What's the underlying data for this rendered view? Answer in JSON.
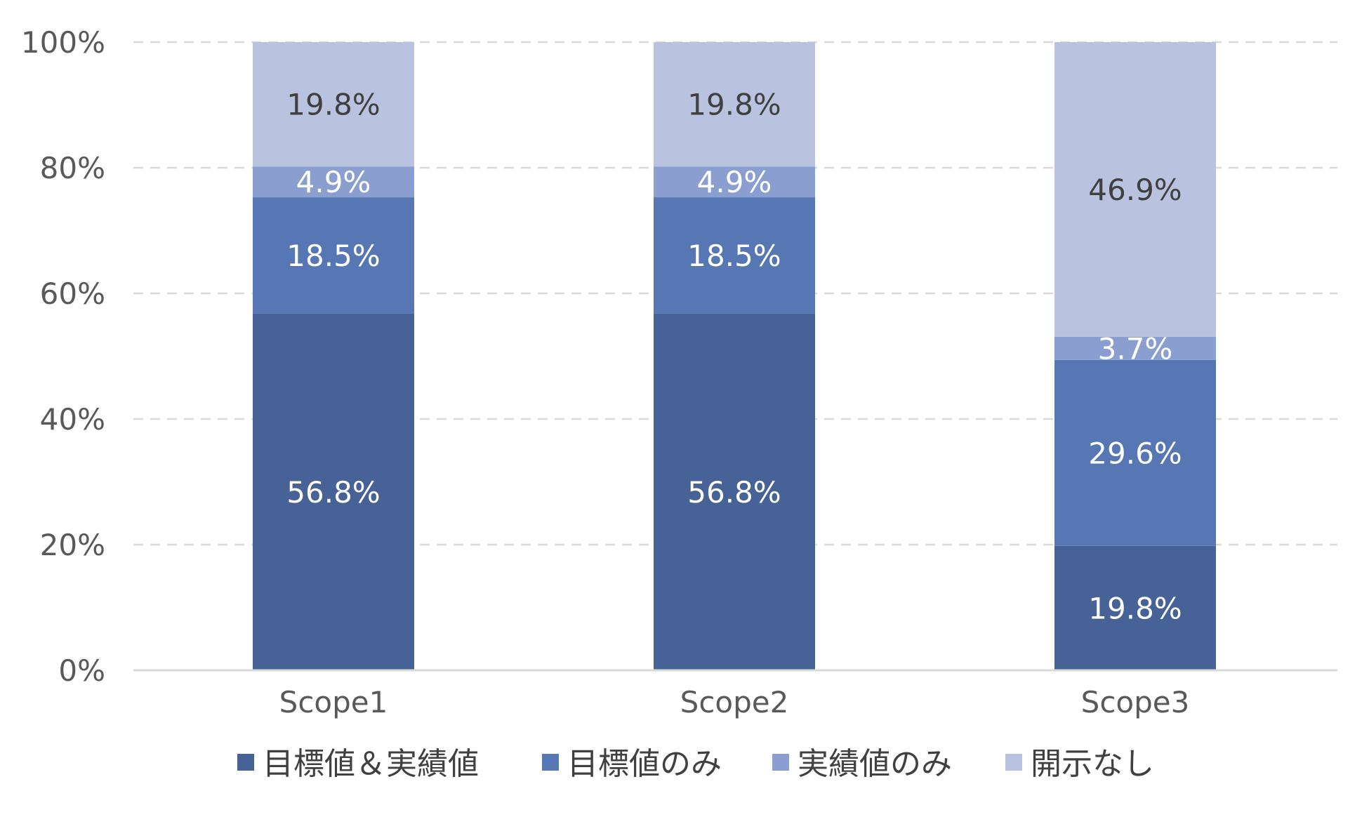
{
  "chart_data": {
    "type": "bar",
    "stacked": true,
    "categories": [
      "Scope1",
      "Scope2",
      "Scope3"
    ],
    "series": [
      {
        "name": "目標値＆実績値",
        "values": [
          56.8,
          56.8,
          19.8
        ],
        "labels": [
          "56.8%",
          "56.8%",
          "19.8%"
        ],
        "color": "#476296",
        "label_color": "#ffffff"
      },
      {
        "name": "目標値のみ",
        "values": [
          18.5,
          18.5,
          29.6
        ],
        "labels": [
          "18.5%",
          "18.5%",
          "29.6%"
        ],
        "color": "#5677b3",
        "label_color": "#ffffff"
      },
      {
        "name": "実績値のみ",
        "values": [
          4.9,
          4.9,
          3.7
        ],
        "labels": [
          "4.9%",
          "4.9%",
          "3.7%"
        ],
        "color": "#8a9fd0",
        "label_color": "#ffffff"
      },
      {
        "name": "開示なし",
        "values": [
          19.8,
          19.8,
          46.9
        ],
        "labels": [
          "19.8%",
          "19.8%",
          "46.9%"
        ],
        "color": "#b9c3e0",
        "label_color": "#404040"
      }
    ],
    "yticks": [
      "0%",
      "20%",
      "40%",
      "60%",
      "80%",
      "100%"
    ],
    "ylim": [
      0,
      100
    ],
    "grid": true,
    "legend_position": "bottom",
    "title": "",
    "xlabel": "",
    "ylabel": ""
  }
}
